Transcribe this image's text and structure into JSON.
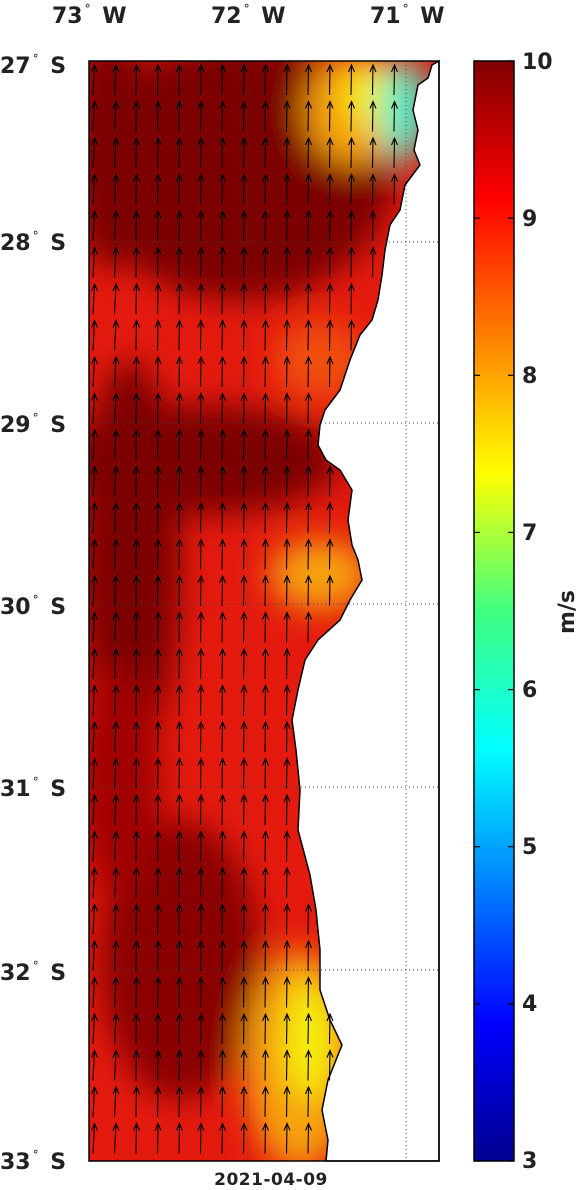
{
  "map": {
    "lon_labels": [
      {
        "lon": -73,
        "num": "73",
        "dir": "W"
      },
      {
        "lon": -72,
        "num": "72",
        "dir": "W"
      },
      {
        "lon": -71,
        "num": "71",
        "dir": "W"
      }
    ],
    "lat_labels": [
      {
        "lat": -27,
        "num": "27",
        "dir": "S"
      },
      {
        "lat": -28,
        "num": "28",
        "dir": "S"
      },
      {
        "lat": -29,
        "num": "29",
        "dir": "S"
      },
      {
        "lat": -30,
        "num": "30",
        "dir": "S"
      },
      {
        "lat": -31,
        "num": "31",
        "dir": "S"
      },
      {
        "lat": -32,
        "num": "32",
        "dir": "S"
      },
      {
        "lat": -33,
        "num": "33",
        "dir": "S"
      }
    ],
    "lon_range": [
      -73,
      -70.8
    ],
    "lat_range": [
      -33,
      -27
    ],
    "date": "2021-04-09",
    "field": "wind speed with direction arrows (northward)"
  },
  "colorbar": {
    "min": 3,
    "max": 10,
    "ticks": [
      "10",
      "9",
      "8",
      "7",
      "6",
      "5",
      "4",
      "3"
    ],
    "unit": "m/s",
    "colormap": "jet"
  },
  "colors": {
    "ocean_dark": "#7d0000",
    "ocean_red": "#e41a0e",
    "ocean_orange": "#f7a10a",
    "ocean_yellow": "#f5f00a",
    "ocean_cyan": "#4fe9c6",
    "land": "#ffffff",
    "arrows": "#000000"
  }
}
